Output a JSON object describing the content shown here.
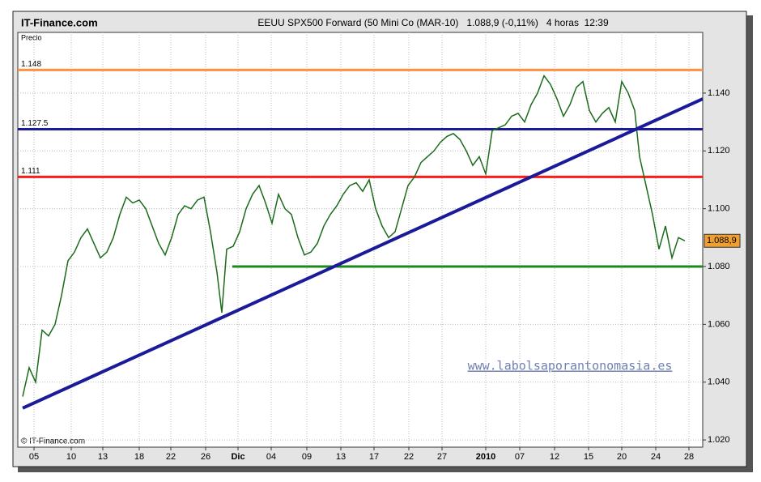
{
  "chart_data": {
    "type": "line",
    "site": "IT-Finance.com",
    "title": "EEUU SPX500 Forward (50 Mini Co (MAR-10)   1.088,9 (-0,11%)   4 horas  12:39",
    "y_label": "Precio",
    "copyright": "© IT-Finance.com",
    "watermark": "www.labolsaporantonomasia.es",
    "color": "#1a6b1a",
    "grid": true,
    "x": [
      6,
      14,
      22,
      30,
      38,
      46,
      54,
      62,
      70,
      78,
      86,
      94,
      102,
      110,
      118,
      126,
      134,
      142,
      150,
      158,
      166,
      174,
      182,
      190,
      198,
      206,
      214,
      222,
      230,
      238,
      246,
      252,
      258,
      266,
      274,
      282,
      290,
      298,
      306,
      314,
      322,
      330,
      338,
      346,
      354,
      362,
      370,
      378,
      386,
      394,
      402,
      410,
      418,
      426,
      434,
      442,
      450,
      458,
      466,
      474,
      482,
      490,
      498,
      506,
      514,
      522,
      530,
      538,
      546,
      554,
      562,
      570,
      578,
      586,
      594,
      602,
      610,
      618,
      626,
      634,
      642,
      650,
      658,
      666,
      674,
      682,
      690,
      698,
      706,
      714,
      722,
      730,
      738,
      746,
      754,
      762,
      768,
      776,
      784,
      792,
      800,
      808,
      816,
      824
    ],
    "values": [
      1.035,
      1.045,
      1.04,
      1.058,
      1.056,
      1.06,
      1.07,
      1.082,
      1.085,
      1.09,
      1.093,
      1.088,
      1.083,
      1.085,
      1.09,
      1.098,
      1.104,
      1.102,
      1.103,
      1.1,
      1.094,
      1.088,
      1.084,
      1.09,
      1.098,
      1.101,
      1.1,
      1.103,
      1.104,
      1.092,
      1.078,
      1.064,
      1.086,
      1.087,
      1.092,
      1.1,
      1.105,
      1.108,
      1.102,
      1.095,
      1.105,
      1.1,
      1.098,
      1.09,
      1.084,
      1.085,
      1.088,
      1.094,
      1.098,
      1.101,
      1.105,
      1.108,
      1.109,
      1.106,
      1.11,
      1.1,
      1.094,
      1.09,
      1.092,
      1.1,
      1.108,
      1.111,
      1.116,
      1.118,
      1.12,
      1.123,
      1.125,
      1.126,
      1.124,
      1.12,
      1.115,
      1.118,
      1.112,
      1.127,
      1.128,
      1.129,
      1.132,
      1.133,
      1.13,
      1.136,
      1.14,
      1.146,
      1.143,
      1.138,
      1.132,
      1.136,
      1.142,
      1.144,
      1.134,
      1.13,
      1.133,
      1.135,
      1.13,
      1.144,
      1.14,
      1.134,
      1.118,
      1.108,
      1.098,
      1.086,
      1.094,
      1.083,
      1.09,
      1.0889
    ],
    "current_price": 1.0889,
    "current_price_label": "1.088,9",
    "levels": [
      {
        "value": 1.148,
        "label": "1.148",
        "color": "#ff9040"
      },
      {
        "value": 1.1275,
        "label": "1.127.5",
        "color": "#1a1a9a"
      },
      {
        "value": 1.111,
        "label": "1.111",
        "color": "#ff1a1a"
      }
    ],
    "support": {
      "value": 1.08,
      "start": 265,
      "color": "#1a8a1a"
    },
    "trend": {
      "x": [
        6,
        846
      ],
      "y": [
        1.031,
        1.138
      ],
      "color": "#1a1a9a"
    },
    "xlim": [
      0,
      846
    ],
    "xticks": [
      {
        "value": 20,
        "label": "05"
      },
      {
        "value": 66,
        "label": "10"
      },
      {
        "value": 105,
        "label": "13"
      },
      {
        "value": 150,
        "label": "18"
      },
      {
        "value": 189,
        "label": "22"
      },
      {
        "value": 232,
        "label": "26"
      },
      {
        "value": 272,
        "label": "Dic"
      },
      {
        "value": 313,
        "label": "04"
      },
      {
        "value": 357,
        "label": "09"
      },
      {
        "value": 399,
        "label": "13"
      },
      {
        "value": 440,
        "label": "17"
      },
      {
        "value": 483,
        "label": "22"
      },
      {
        "value": 524,
        "label": "27"
      },
      {
        "value": 578,
        "label": "2010"
      },
      {
        "value": 620,
        "label": "07"
      },
      {
        "value": 663,
        "label": "12"
      },
      {
        "value": 705,
        "label": "15"
      },
      {
        "value": 746,
        "label": "20"
      },
      {
        "value": 788,
        "label": "24"
      },
      {
        "value": 829,
        "label": "28"
      }
    ],
    "ylim": [
      1.0175,
      1.161
    ],
    "yticks": [
      {
        "value": 1.02,
        "label": "1.020"
      },
      {
        "value": 1.04,
        "label": "1.040"
      },
      {
        "value": 1.06,
        "label": "1.060"
      },
      {
        "value": 1.08,
        "label": "1.080"
      },
      {
        "value": 1.1,
        "label": "1.100"
      },
      {
        "value": 1.12,
        "label": "1.120"
      },
      {
        "value": 1.14,
        "label": "1.140"
      }
    ]
  }
}
